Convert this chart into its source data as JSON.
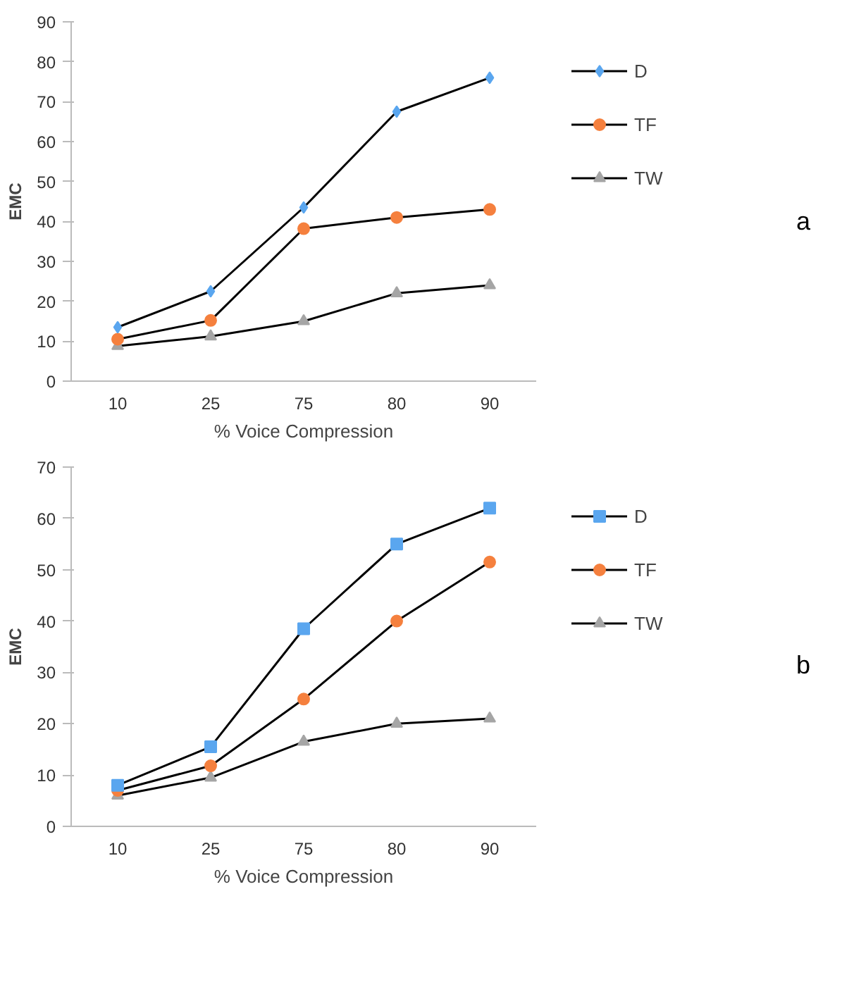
{
  "chart_data": [
    {
      "type": "line",
      "categories": [
        "10",
        "25",
        "75",
        "80",
        "90"
      ],
      "xlabel": "% Voice Compression",
      "ylabel": "EMC",
      "ylim": [
        0,
        90
      ],
      "yticks": [
        0,
        10,
        20,
        30,
        40,
        50,
        60,
        70,
        80,
        90
      ],
      "grid": false,
      "legend": "right",
      "annotations": [
        "a"
      ],
      "series": [
        {
          "name": "D",
          "color": "#5aa6ef",
          "marker": "diamond",
          "values": [
            13.5,
            22.5,
            43.5,
            67.5,
            76
          ]
        },
        {
          "name": "TF",
          "color": "#f5803e",
          "marker": "circle",
          "values": [
            10.5,
            15.2,
            38.2,
            41,
            43
          ]
        },
        {
          "name": "TW",
          "color": "#a5a5a5",
          "marker": "triangle",
          "values": [
            8.8,
            11.2,
            15,
            22,
            24
          ]
        }
      ]
    },
    {
      "type": "line",
      "categories": [
        "10",
        "25",
        "75",
        "80",
        "90"
      ],
      "xlabel": "% Voice Compression",
      "ylabel": "EMC",
      "ylim": [
        0,
        70
      ],
      "yticks": [
        0,
        10,
        20,
        30,
        40,
        50,
        60,
        70
      ],
      "grid": false,
      "legend": "right",
      "annotations": [
        "b"
      ],
      "series": [
        {
          "name": "D",
          "color": "#5aa6ef",
          "marker": "square",
          "values": [
            8,
            15.5,
            38.5,
            55,
            62
          ]
        },
        {
          "name": "TF",
          "color": "#f5803e",
          "marker": "circle",
          "values": [
            7,
            11.8,
            24.8,
            40,
            51.5
          ]
        },
        {
          "name": "TW",
          "color": "#a5a5a5",
          "marker": "triangle",
          "values": [
            6,
            9.5,
            16.5,
            20,
            21
          ]
        }
      ]
    }
  ]
}
